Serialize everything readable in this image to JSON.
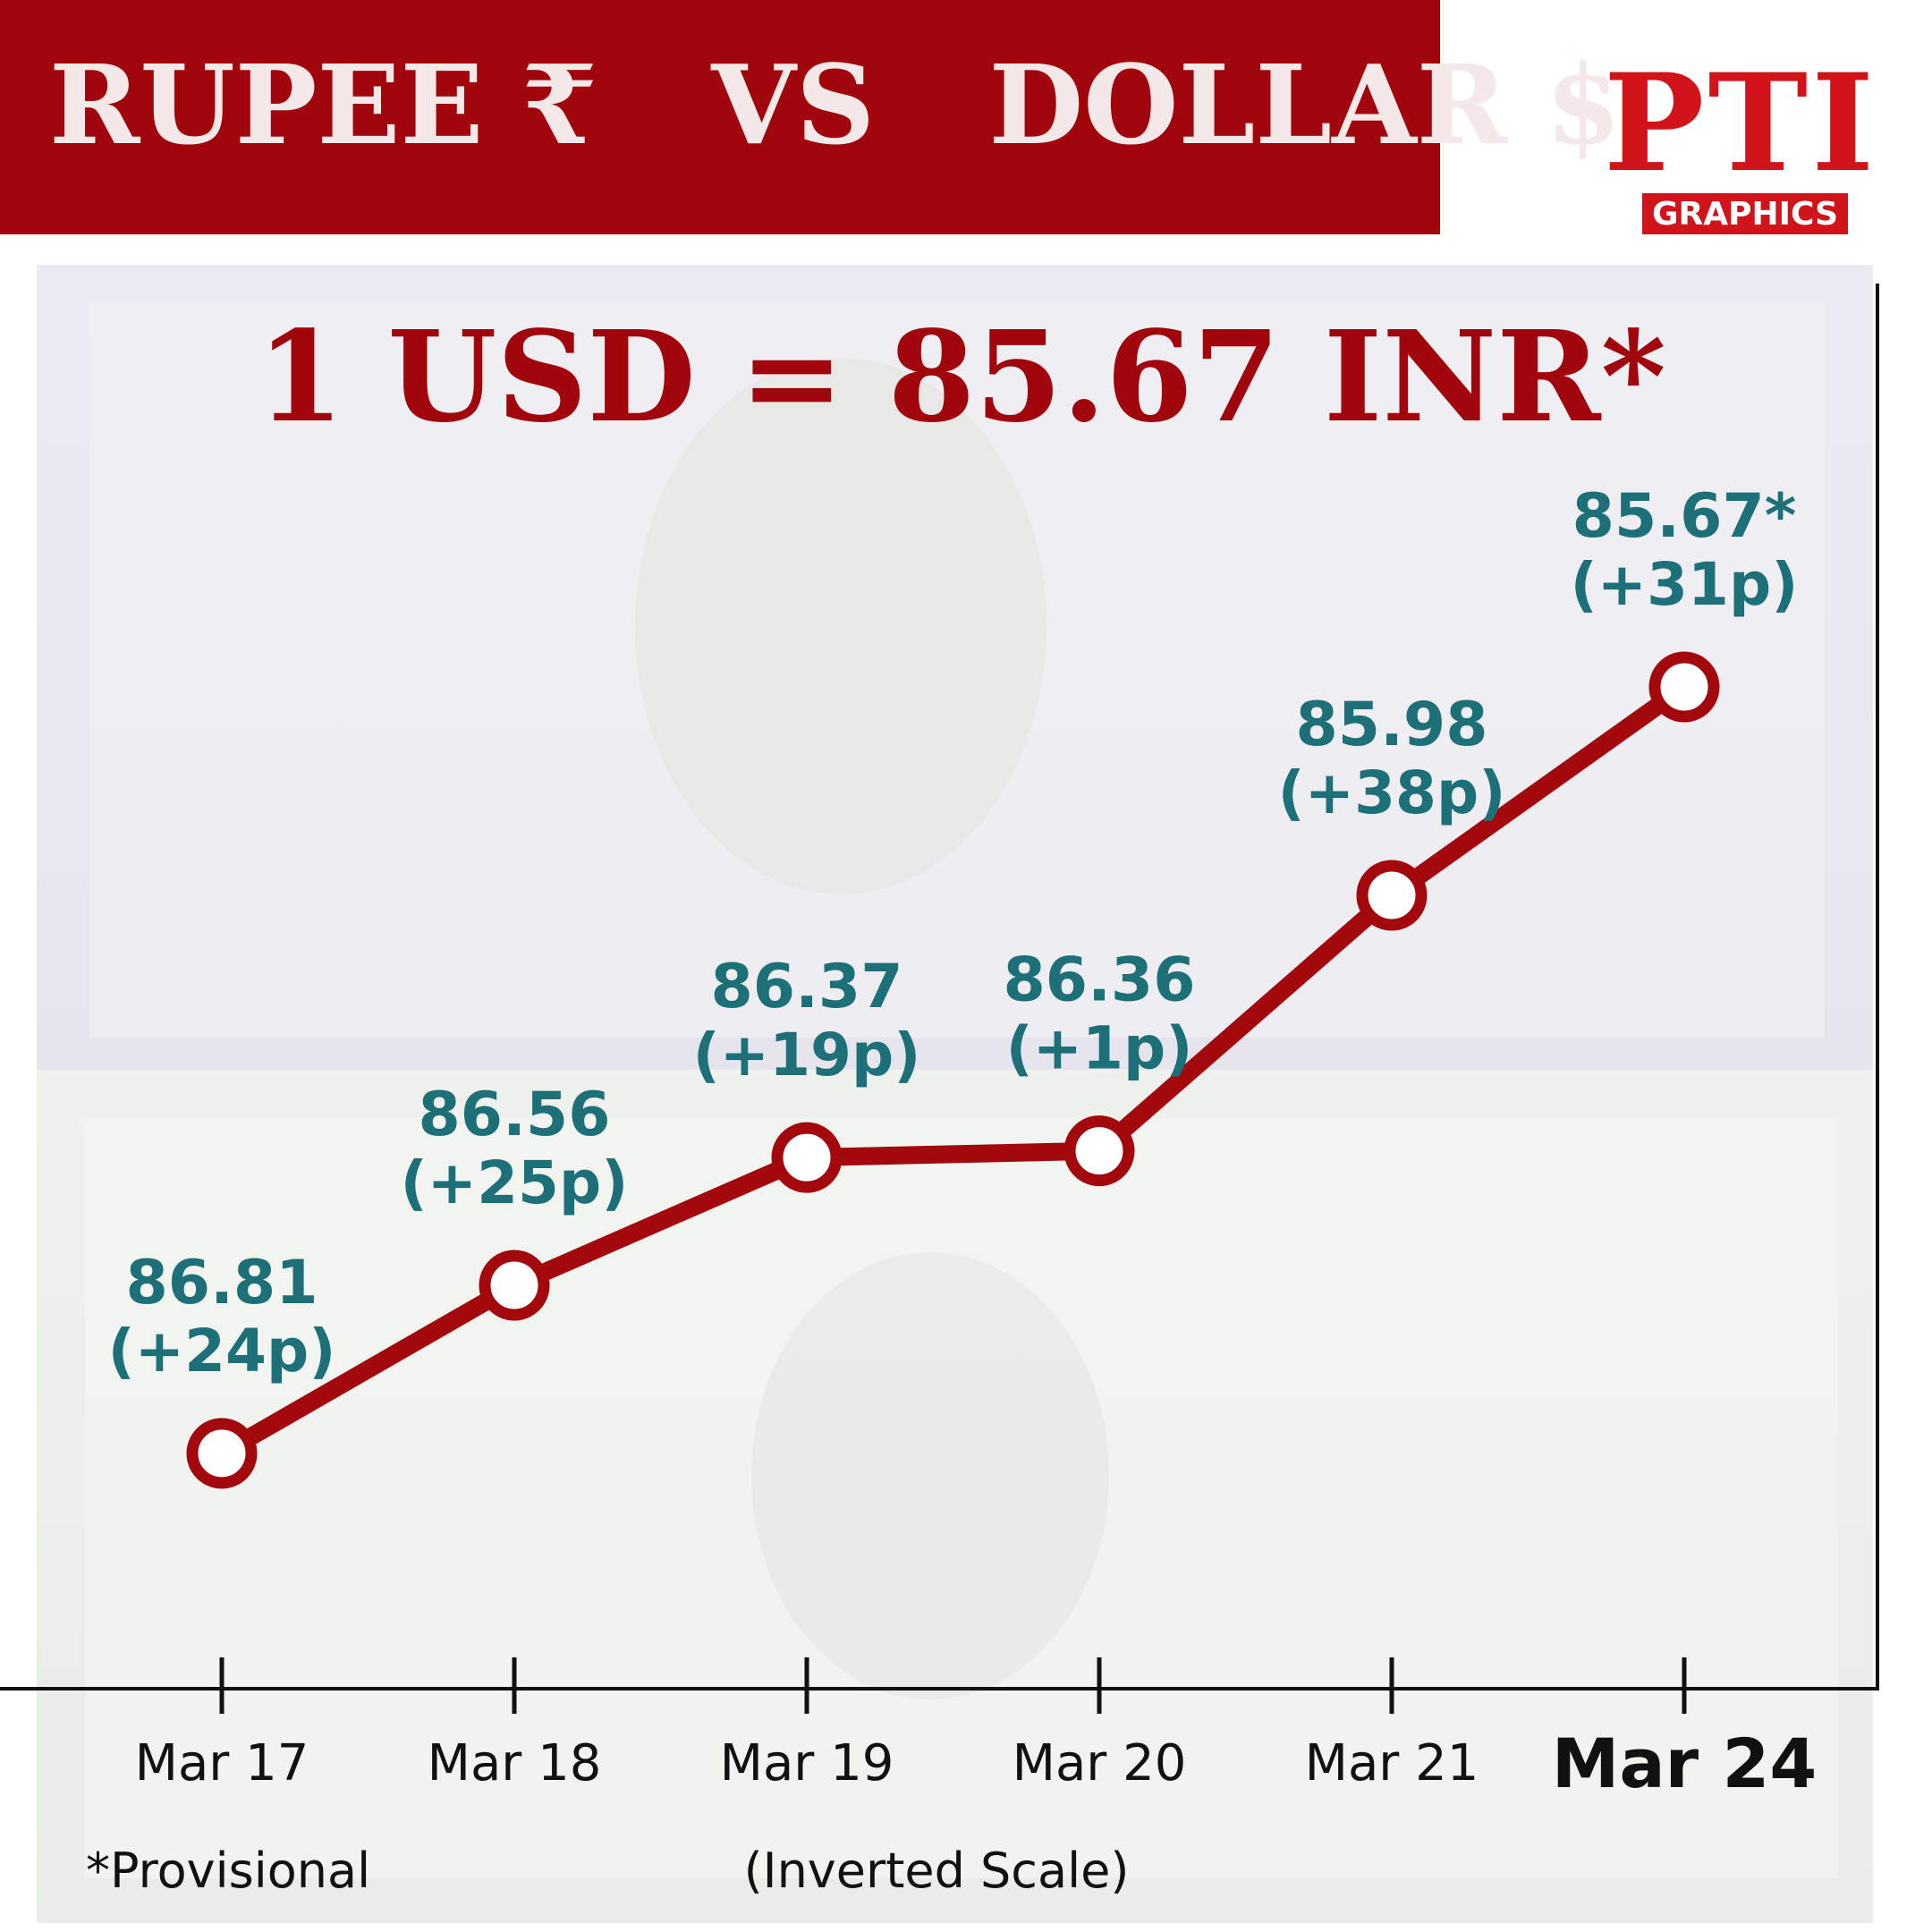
{
  "chart_data": {
    "type": "line",
    "title": "RUPEE ₹   VS   DOLLAR $",
    "logo_text": "PTI",
    "logo_subtitle": "GRAPHICS",
    "headline": "1 USD = 85.67 INR*",
    "categories": [
      "Mar 17",
      "Mar 18",
      "Mar 19",
      "Mar 20",
      "Mar 21",
      "Mar 24"
    ],
    "values": [
      86.81,
      86.56,
      86.37,
      86.36,
      85.98,
      85.67
    ],
    "value_labels": [
      "86.81",
      "86.56",
      "86.37",
      "86.36",
      "85.98",
      "85.67*"
    ],
    "change_labels": [
      "(+24p)",
      "(+25p)",
      "(+19p)",
      "(+1p)",
      "(+38p)",
      "(+31p)"
    ],
    "ylim": [
      87.16,
      85.07
    ],
    "color": "#a3080c",
    "label_color": "#1d7077",
    "footnote": "*Provisional",
    "scale_note": "(Inverted Scale)"
  }
}
